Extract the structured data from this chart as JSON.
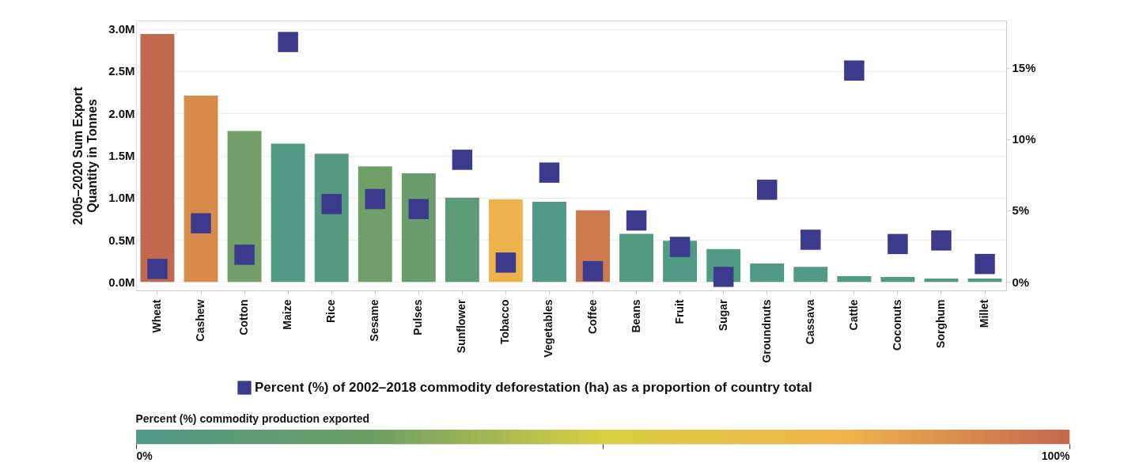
{
  "chart_data": {
    "type": "bar",
    "ylabel": "2005–2020 Sum Export\nQuantity in Tonnes",
    "categories": [
      "Wheat",
      "Cashew",
      "Cotton",
      "Maize",
      "Rice",
      "Sesame",
      "Pulses",
      "Sunflower",
      "Tobacco",
      "Vegetables",
      "Coffee",
      "Beans",
      "Fruit",
      "Sugar",
      "Groundnuts",
      "Cassava",
      "Cattle",
      "Coconuts",
      "Sorghum",
      "Millet"
    ],
    "ylim": [
      -100000,
      3100000
    ],
    "yticks": [
      {
        "value": 0,
        "label": "0.0M"
      },
      {
        "value": 500000,
        "label": "0.5M"
      },
      {
        "value": 1000000,
        "label": "1.0M"
      },
      {
        "value": 1500000,
        "label": "1.5M"
      },
      {
        "value": 2000000,
        "label": "2.0M"
      },
      {
        "value": 2500000,
        "label": "2.5M"
      },
      {
        "value": 3000000,
        "label": "3.0M"
      }
    ],
    "y2lim": [
      -0.6,
      18.3
    ],
    "y2ticks": [
      {
        "value": 0,
        "label": "0%"
      },
      {
        "value": 5,
        "label": "5%"
      },
      {
        "value": 10,
        "label": "10%"
      },
      {
        "value": 15,
        "label": "15%"
      }
    ],
    "grid": "y",
    "legend": "bottom",
    "clabel": "Percent (%) commodity production exported",
    "clim": [
      0,
      100
    ],
    "cticks": [
      {
        "value": 0,
        "label": "0%"
      },
      {
        "value": 50,
        "label": null
      },
      {
        "value": 100,
        "label": "100%"
      }
    ],
    "series": [
      {
        "colors": [
          "#c1694f",
          "#d88c4c",
          "#72a068",
          "#519a84",
          "#55997f",
          "#70a067",
          "#699d6d",
          "#5d9a78",
          "#eeb24d",
          "#519a84",
          "#cd7a4f",
          "#539a82",
          "#519a84",
          "#519a84",
          "#519a84",
          "#519a84",
          "#519a84",
          "#519a84",
          "#519a84",
          "#519a84"
        ],
        "values": [
          2940000,
          2210000,
          1790000,
          1640000,
          1520000,
          1370000,
          1290000,
          1000000,
          980000,
          950000,
          850000,
          570000,
          490000,
          390000,
          220000,
          180000,
          70000,
          60000,
          40000,
          40000
        ]
      },
      {
        "type": "scatter",
        "axis": "y2",
        "name": "Percent (%) of 2002–2018 commodity deforestation (ha) as a proportion of country total",
        "color": "#3b3a8c",
        "marker": "square",
        "values": [
          0.9,
          4.1,
          1.9,
          16.8,
          5.45,
          5.8,
          5.1,
          8.55,
          1.35,
          7.65,
          0.75,
          4.3,
          2.45,
          0.35,
          6.45,
          2.95,
          14.8,
          2.65,
          2.9,
          1.25
        ]
      }
    ]
  }
}
